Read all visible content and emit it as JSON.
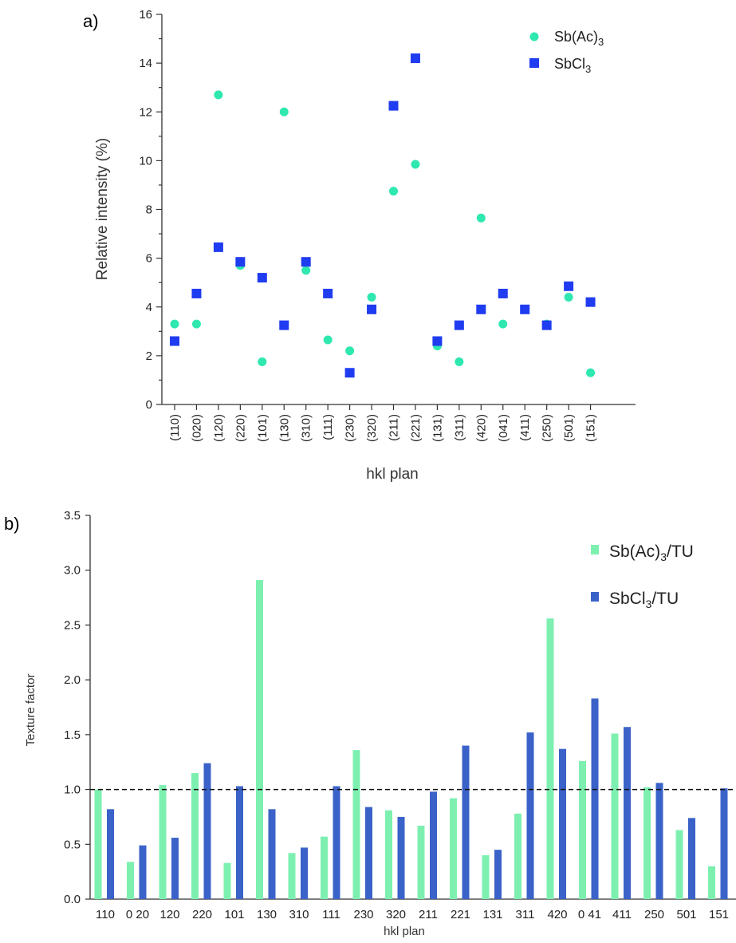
{
  "chart_data": [
    {
      "type": "scatter",
      "panel_label": "a)",
      "xlabel": "hkl plan",
      "ylabel": "Relative intensity (%)",
      "ylim": [
        0,
        16
      ],
      "yticks": [
        "0",
        "2",
        "4",
        "6",
        "8",
        "10",
        "12",
        "14",
        "16"
      ],
      "categories": [
        "(110)",
        "(020)",
        "(120)",
        "(220)",
        "(101)",
        "(130)",
        "(310)",
        "(111)",
        "(230)",
        "(320)",
        "(211)",
        "(221)",
        "(131)",
        "(311)",
        "(420)",
        "(041)",
        "(411)",
        "(250)",
        "(501)",
        "(151)"
      ],
      "legend_position": "top-right",
      "grid": false,
      "series": [
        {
          "name": "Sb(Ac)",
          "name_sub": "3",
          "marker": "circle",
          "color": "#2ee8b0",
          "values": [
            3.3,
            3.3,
            12.7,
            5.7,
            1.75,
            12.0,
            5.5,
            2.65,
            2.2,
            4.4,
            8.75,
            9.85,
            2.4,
            1.75,
            7.65,
            3.3,
            3.9,
            3.3,
            4.4,
            1.3
          ]
        },
        {
          "name": "SbCl",
          "name_sub": "3",
          "marker": "square",
          "color": "#1f3cf0",
          "values": [
            2.6,
            4.55,
            6.45,
            5.85,
            5.2,
            3.25,
            5.85,
            4.55,
            1.3,
            3.9,
            12.25,
            14.2,
            2.6,
            3.25,
            3.9,
            4.55,
            3.9,
            3.25,
            4.85,
            4.2
          ]
        }
      ]
    },
    {
      "type": "bar",
      "panel_label": "b)",
      "xlabel": "hkl plan",
      "ylabel": "Texture factor",
      "ylim": [
        0,
        3.5
      ],
      "yticks": [
        "0.0",
        "0.5",
        "1.0",
        "1.5",
        "2.0",
        "2.5",
        "3.0",
        "3.5"
      ],
      "categories": [
        "110",
        "0 20",
        "120",
        "220",
        "101",
        "130",
        "310",
        "111",
        "230",
        "320",
        "211",
        "221",
        "131",
        "311",
        "420",
        "0 41",
        "411",
        "250",
        "501",
        "151"
      ],
      "reference_line": 1.0,
      "legend_position": "top-right",
      "grid": false,
      "series": [
        {
          "name_pre": "Sb(Ac)",
          "name_sub": "3",
          "name_post": "/TU",
          "color": "#7df0b0",
          "values": [
            1.0,
            0.34,
            1.04,
            1.15,
            0.33,
            2.91,
            0.42,
            0.57,
            1.36,
            0.81,
            0.67,
            0.92,
            0.4,
            0.78,
            2.56,
            1.26,
            1.51,
            1.02,
            0.63,
            0.3
          ]
        },
        {
          "name_pre": "SbCl",
          "name_sub": "3",
          "name_post": "/TU",
          "color": "#3a62c8",
          "values": [
            0.82,
            0.49,
            0.56,
            1.24,
            1.03,
            0.82,
            0.47,
            1.03,
            0.84,
            0.75,
            0.98,
            1.4,
            0.45,
            1.52,
            1.37,
            1.83,
            1.57,
            1.06,
            0.74,
            1.01
          ]
        }
      ]
    }
  ]
}
